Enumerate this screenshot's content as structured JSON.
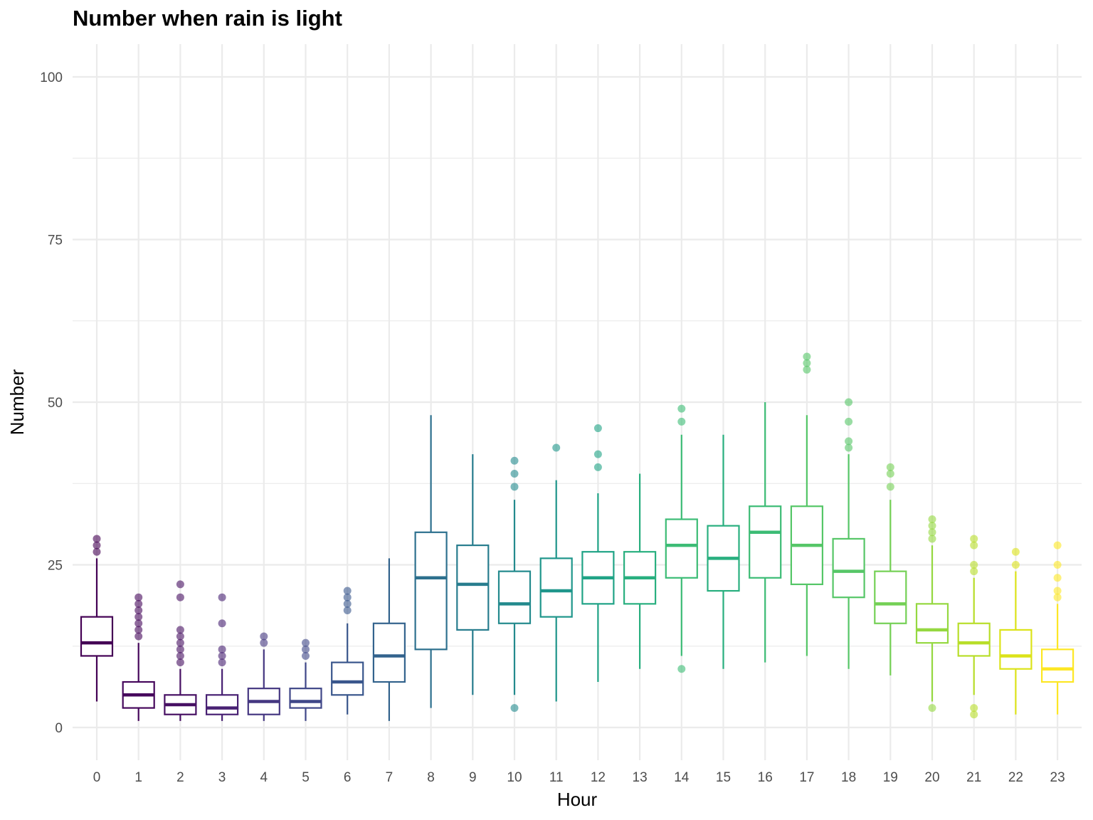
{
  "chart_data": {
    "type": "boxplot",
    "title": "Number when rain is light",
    "xlabel": "Hour",
    "ylabel": "Number",
    "ylim": [
      -5,
      100
    ],
    "y_ticks": [
      0,
      25,
      50,
      75,
      100
    ],
    "grid": true,
    "legend": "none",
    "categories": [
      "0",
      "1",
      "2",
      "3",
      "4",
      "5",
      "6",
      "7",
      "8",
      "9",
      "10",
      "11",
      "12",
      "13",
      "14",
      "15",
      "16",
      "17",
      "18",
      "19",
      "20",
      "21",
      "22",
      "23"
    ],
    "colors": [
      "#440154",
      "#481668",
      "#482878",
      "#443983",
      "#3E4A89",
      "#375A8C",
      "#31688E",
      "#2B758E",
      "#26828E",
      "#21908C",
      "#1F9E89",
      "#25AB82",
      "#35B779",
      "#4EC36B",
      "#6CCD5A",
      "#8FD744",
      "#B4DE2C",
      "#D8E219",
      "#FDE725",
      "#FDE725",
      "#FDE725",
      "#FDE725",
      "#FDE725",
      "#FDE725"
    ],
    "boxes": [
      {
        "hour": "0",
        "min": 4,
        "q1": 11,
        "median": 13,
        "q3": 17,
        "max": 26,
        "outliers": [
          27,
          28,
          29
        ],
        "color": "#440154"
      },
      {
        "hour": "1",
        "min": 1,
        "q1": 3,
        "median": 5,
        "q3": 7,
        "max": 13,
        "outliers": [
          14,
          15,
          16,
          17,
          18,
          19,
          20
        ],
        "color": "#46085C"
      },
      {
        "hour": "2",
        "min": 1,
        "q1": 2,
        "median": 3.5,
        "q3": 5,
        "max": 9,
        "outliers": [
          10,
          11,
          12,
          13,
          14,
          15,
          20,
          22
        ],
        "color": "#471063"
      },
      {
        "hour": "3",
        "min": 1,
        "q1": 2,
        "median": 3,
        "q3": 5,
        "max": 9,
        "outliers": [
          10,
          11,
          12,
          16,
          20
        ],
        "color": "#482173"
      },
      {
        "hour": "4",
        "min": 1,
        "q1": 2,
        "median": 4,
        "q3": 6,
        "max": 12,
        "outliers": [
          13,
          14
        ],
        "color": "#453781"
      },
      {
        "hour": "5",
        "min": 1,
        "q1": 3,
        "median": 4,
        "q3": 6,
        "max": 10,
        "outliers": [
          11,
          12,
          13
        ],
        "color": "#3F4788"
      },
      {
        "hour": "6",
        "min": 2,
        "q1": 5,
        "median": 7,
        "q3": 10,
        "max": 16,
        "outliers": [
          18,
          19,
          20,
          21
        ],
        "color": "#39568C"
      },
      {
        "hour": "7",
        "min": 1,
        "q1": 7,
        "median": 11,
        "q3": 16,
        "max": 26,
        "outliers": [],
        "color": "#33638D"
      },
      {
        "hour": "8",
        "min": 3,
        "q1": 12,
        "median": 23,
        "q3": 30,
        "max": 48,
        "outliers": [],
        "color": "#2D708E"
      },
      {
        "hour": "9",
        "min": 5,
        "q1": 15,
        "median": 22,
        "q3": 28,
        "max": 42,
        "outliers": [],
        "color": "#287D8E"
      },
      {
        "hour": "10",
        "min": 5,
        "q1": 16,
        "median": 19,
        "q3": 24,
        "max": 35,
        "outliers": [
          3,
          37,
          39,
          41
        ],
        "color": "#238A8D"
      },
      {
        "hour": "11",
        "min": 4,
        "q1": 17,
        "median": 21,
        "q3": 26,
        "max": 38,
        "outliers": [
          43
        ],
        "color": "#1F968B"
      },
      {
        "hour": "12",
        "min": 7,
        "q1": 19,
        "median": 23,
        "q3": 27,
        "max": 36,
        "outliers": [
          40,
          42,
          46
        ],
        "color": "#20A386"
      },
      {
        "hour": "13",
        "min": 9,
        "q1": 19,
        "median": 23,
        "q3": 27,
        "max": 39,
        "outliers": [],
        "color": "#29AF7F"
      },
      {
        "hour": "14",
        "min": 11,
        "q1": 23,
        "median": 28,
        "q3": 32,
        "max": 45,
        "outliers": [
          9,
          47,
          49
        ],
        "color": "#3CBC75"
      },
      {
        "hour": "15",
        "min": 9,
        "q1": 21,
        "median": 26,
        "q3": 31,
        "max": 45,
        "outliers": [],
        "color": "#29AF7F"
      },
      {
        "hour": "16",
        "min": 10,
        "q1": 23,
        "median": 30,
        "q3": 34,
        "max": 50,
        "outliers": [],
        "color": "#3CBC75"
      },
      {
        "hour": "17",
        "min": 11,
        "q1": 22,
        "median": 28,
        "q3": 34,
        "max": 48,
        "outliers": [
          55,
          56,
          57
        ],
        "color": "#55C667"
      },
      {
        "hour": "18",
        "min": 9,
        "q1": 20,
        "median": 24,
        "q3": 29,
        "max": 42,
        "outliers": [
          43,
          44,
          47,
          50
        ],
        "color": "#56C667"
      },
      {
        "hour": "19",
        "min": 8,
        "q1": 16,
        "median": 19,
        "q3": 24,
        "max": 35,
        "outliers": [
          37,
          39,
          40
        ],
        "color": "#74D055"
      },
      {
        "hour": "20",
        "min": 4,
        "q1": 13,
        "median": 15,
        "q3": 19,
        "max": 28,
        "outliers": [
          3,
          29,
          30,
          31,
          32
        ],
        "color": "#95D840"
      },
      {
        "hour": "21",
        "min": 5,
        "q1": 11,
        "median": 13,
        "q3": 16,
        "max": 23,
        "outliers": [
          2,
          3,
          24,
          25,
          28,
          29
        ],
        "color": "#B8DE29"
      },
      {
        "hour": "22",
        "min": 2,
        "q1": 9,
        "median": 11,
        "q3": 15,
        "max": 24,
        "outliers": [
          25,
          27
        ],
        "color": "#DCE319"
      },
      {
        "hour": "23",
        "min": 2,
        "q1": 7,
        "median": 9,
        "q3": 12,
        "max": 19,
        "outliers": [
          20,
          21,
          23,
          25,
          28
        ],
        "color": "#FDE725"
      }
    ]
  }
}
